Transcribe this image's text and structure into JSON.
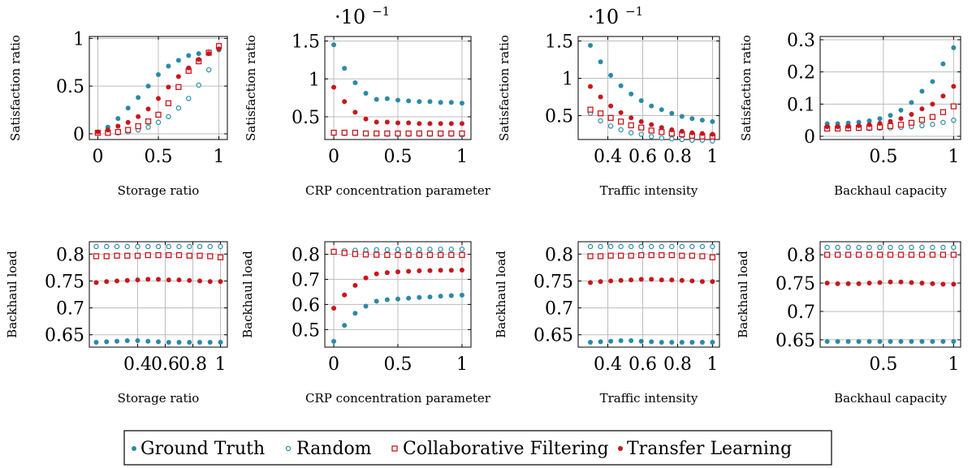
{
  "colors": {
    "teal": "#2a8ba6",
    "red": "#c8161d",
    "frame": "#000000",
    "grid": "#bdbdbd"
  },
  "legend": {
    "placement": "bottom-center",
    "items": [
      {
        "label": "Ground Truth",
        "marker": "filled-circle",
        "color": "#2a8ba6"
      },
      {
        "label": "Random",
        "marker": "open-circle",
        "color": "#2a8ba6"
      },
      {
        "label": "Collaborative Filtering",
        "marker": "open-square",
        "color": "#c8161d"
      },
      {
        "label": "Transfer Learning",
        "marker": "filled-circle",
        "color": "#c8161d"
      }
    ]
  },
  "chart_data": [
    {
      "type": "scatter",
      "grid": true,
      "xlabel": "Storage ratio",
      "ylabel": "Satisfaction ratio",
      "y_multiplier": "",
      "xlim": [
        -0.07,
        1.07
      ],
      "ylim": [
        -0.06,
        1.02
      ],
      "xticks": [
        0,
        0.5,
        1
      ],
      "xtick_labels": [
        "0",
        "0.5",
        "1"
      ],
      "yticks": [
        0,
        0.5,
        1
      ],
      "ytick_labels": [
        "0",
        "0.5",
        "1"
      ],
      "x": [
        0,
        0.0833,
        0.1667,
        0.25,
        0.3333,
        0.4167,
        0.5,
        0.5833,
        0.6667,
        0.75,
        0.8333,
        0.9167,
        1
      ],
      "series": [
        {
          "name": "Ground Truth",
          "values": [
            0.02,
            0.07,
            0.16,
            0.27,
            0.38,
            0.5,
            0.62,
            0.71,
            0.77,
            0.82,
            0.84,
            0.86,
            0.88
          ]
        },
        {
          "name": "Random",
          "values": [
            0.01,
            0.01,
            0.01,
            0.02,
            0.04,
            0.07,
            0.12,
            0.18,
            0.27,
            0.37,
            0.51,
            0.67,
            0.89
          ]
        },
        {
          "name": "Collaborative Filtering",
          "values": [
            0.01,
            0.01,
            0.02,
            0.04,
            0.08,
            0.13,
            0.2,
            0.32,
            0.49,
            0.66,
            0.76,
            0.85,
            0.92
          ]
        },
        {
          "name": "Transfer Learning",
          "values": [
            0.02,
            0.04,
            0.08,
            0.12,
            0.18,
            0.26,
            0.37,
            0.49,
            0.6,
            0.69,
            0.78,
            0.84,
            0.89
          ]
        }
      ]
    },
    {
      "type": "scatter",
      "grid": true,
      "xlabel": "CRP concentration parameter",
      "ylabel": "Satisfaction ratio",
      "y_multiplier": "·10",
      "y_multiplier_exp": "−1",
      "xlim": [
        -0.07,
        1.07
      ],
      "ylim": [
        0.2,
        1.56
      ],
      "xticks": [
        0,
        0.5,
        1
      ],
      "xtick_labels": [
        "0",
        "0.5",
        "1"
      ],
      "yticks": [
        0.5,
        1,
        1.5
      ],
      "ytick_labels": [
        "0.5",
        "1",
        "1.5"
      ],
      "x": [
        0,
        0.0833,
        0.1667,
        0.25,
        0.3333,
        0.4167,
        0.5,
        0.5833,
        0.6667,
        0.75,
        0.8333,
        0.9167,
        1
      ],
      "series": [
        {
          "name": "Ground Truth",
          "values": [
            1.45,
            1.14,
            0.95,
            0.81,
            0.73,
            0.74,
            0.72,
            0.71,
            0.7,
            0.7,
            0.69,
            0.69,
            0.68
          ]
        },
        {
          "name": "Random",
          "values": [
            0.28,
            0.28,
            0.28,
            0.28,
            0.28,
            0.27,
            0.27,
            0.27,
            0.27,
            0.27,
            0.27,
            0.27,
            0.26
          ]
        },
        {
          "name": "Collaborative Filtering",
          "values": [
            0.29,
            0.29,
            0.29,
            0.28,
            0.28,
            0.28,
            0.28,
            0.28,
            0.28,
            0.28,
            0.28,
            0.28,
            0.28
          ]
        },
        {
          "name": "Transfer Learning",
          "values": [
            0.89,
            0.7,
            0.56,
            0.47,
            0.43,
            0.43,
            0.42,
            0.42,
            0.41,
            0.41,
            0.41,
            0.41,
            0.41
          ]
        }
      ]
    },
    {
      "type": "scatter",
      "grid": true,
      "xlabel": "Traffic intensity",
      "ylabel": "Satisfaction ratio",
      "y_multiplier": "·10",
      "y_multiplier_exp": "−1",
      "xlim": [
        0.23,
        1.04
      ],
      "ylim": [
        0.18,
        1.56
      ],
      "xticks": [
        0.4,
        0.6,
        0.8,
        1
      ],
      "xtick_labels": [
        "0.4",
        "0.6",
        "0.8",
        "1"
      ],
      "yticks": [
        0.5,
        1,
        1.5
      ],
      "ytick_labels": [
        "0.5",
        "1",
        "1.5"
      ],
      "x": [
        0.3,
        0.3583,
        0.4167,
        0.475,
        0.5333,
        0.5917,
        0.65,
        0.7083,
        0.7667,
        0.825,
        0.8833,
        0.9417,
        1
      ],
      "series": [
        {
          "name": "Ground Truth",
          "values": [
            1.44,
            1.22,
            1.04,
            0.9,
            0.79,
            0.7,
            0.63,
            0.58,
            0.53,
            0.49,
            0.46,
            0.44,
            0.42
          ]
        },
        {
          "name": "Random",
          "values": [
            0.53,
            0.43,
            0.36,
            0.31,
            0.27,
            0.25,
            0.22,
            0.2,
            0.19,
            0.18,
            0.17,
            0.17,
            0.16
          ]
        },
        {
          "name": "Collaborative Filtering",
          "values": [
            0.58,
            0.53,
            0.47,
            0.42,
            0.37,
            0.34,
            0.3,
            0.28,
            0.26,
            0.25,
            0.23,
            0.22,
            0.22
          ]
        },
        {
          "name": "Transfer Learning",
          "values": [
            0.89,
            0.75,
            0.63,
            0.54,
            0.47,
            0.42,
            0.38,
            0.34,
            0.31,
            0.29,
            0.27,
            0.26,
            0.25
          ]
        }
      ]
    },
    {
      "type": "scatter",
      "grid": true,
      "xlabel": "Backhaul capacity",
      "ylabel": "Satisfaction ratio",
      "y_multiplier": "",
      "xlim": [
        0.05,
        1.05
      ],
      "ylim": [
        -0.01,
        0.31
      ],
      "xticks": [
        0.5,
        1
      ],
      "xtick_labels": [
        "0.5",
        "1"
      ],
      "yticks": [
        0,
        0.1,
        0.2,
        0.3
      ],
      "ytick_labels": [
        "0",
        "0.1",
        "0.2",
        "0.3"
      ],
      "x": [
        0.1,
        0.175,
        0.25,
        0.325,
        0.4,
        0.475,
        0.55,
        0.625,
        0.7,
        0.775,
        0.85,
        0.925,
        1
      ],
      "series": [
        {
          "name": "Ground Truth",
          "values": [
            0.039,
            0.039,
            0.041,
            0.044,
            0.048,
            0.055,
            0.065,
            0.081,
            0.105,
            0.14,
            0.17,
            0.225,
            0.275
          ]
        },
        {
          "name": "Random",
          "values": [
            0.023,
            0.023,
            0.023,
            0.024,
            0.024,
            0.025,
            0.026,
            0.028,
            0.03,
            0.033,
            0.037,
            0.043,
            0.05
          ]
        },
        {
          "name": "Collaborative Filtering",
          "values": [
            0.024,
            0.024,
            0.025,
            0.026,
            0.027,
            0.029,
            0.032,
            0.036,
            0.042,
            0.051,
            0.06,
            0.075,
            0.093
          ]
        },
        {
          "name": "Transfer Learning",
          "values": [
            0.03,
            0.03,
            0.031,
            0.033,
            0.036,
            0.04,
            0.046,
            0.055,
            0.068,
            0.085,
            0.1,
            0.125,
            0.155
          ]
        }
      ]
    },
    {
      "type": "scatter",
      "grid": true,
      "xlabel": "Storage ratio",
      "ylabel": "Backhaul load",
      "y_multiplier": "",
      "xlim": [
        0.05,
        1.05
      ],
      "ylim": [
        0.627,
        0.823
      ],
      "xticks": [
        0.4,
        0.6,
        0.8,
        1
      ],
      "xtick_labels": [
        "0.4",
        "0.6",
        "0.8",
        "1"
      ],
      "yticks": [
        0.65,
        0.7,
        0.75,
        0.8
      ],
      "ytick_labels": [
        "0.65",
        "0.7",
        "0.75",
        "0.8"
      ],
      "x": [
        0.1,
        0.175,
        0.25,
        0.325,
        0.4,
        0.475,
        0.55,
        0.625,
        0.7,
        0.775,
        0.85,
        0.925,
        1
      ],
      "series": [
        {
          "name": "Ground Truth",
          "values": [
            0.636,
            0.637,
            0.638,
            0.639,
            0.639,
            0.638,
            0.637,
            0.636,
            0.636,
            0.636,
            0.636,
            0.636,
            0.636
          ]
        },
        {
          "name": "Random",
          "values": [
            0.814,
            0.814,
            0.814,
            0.814,
            0.814,
            0.814,
            0.814,
            0.814,
            0.814,
            0.814,
            0.814,
            0.814,
            0.814
          ]
        },
        {
          "name": "Collaborative Filtering",
          "values": [
            0.796,
            0.796,
            0.797,
            0.797,
            0.797,
            0.798,
            0.798,
            0.798,
            0.798,
            0.797,
            0.797,
            0.796,
            0.794
          ]
        },
        {
          "name": "Transfer Learning",
          "values": [
            0.747,
            0.749,
            0.75,
            0.751,
            0.752,
            0.753,
            0.753,
            0.752,
            0.752,
            0.751,
            0.75,
            0.749,
            0.749
          ]
        }
      ]
    },
    {
      "type": "scatter",
      "grid": true,
      "xlabel": "CRP concentration parameter",
      "ylabel": "Backhaul load",
      "y_multiplier": "",
      "xlim": [
        -0.07,
        1.07
      ],
      "ylim": [
        0.43,
        0.85
      ],
      "xticks": [
        0,
        0.5,
        1
      ],
      "xtick_labels": [
        "0",
        "0.5",
        "1"
      ],
      "yticks": [
        0.5,
        0.6,
        0.7,
        0.8
      ],
      "ytick_labels": [
        "0.5",
        "0.6",
        "0.7",
        "0.8"
      ],
      "x": [
        0,
        0.0833,
        0.1667,
        0.25,
        0.3333,
        0.4167,
        0.5,
        0.5833,
        0.6667,
        0.75,
        0.8333,
        0.9167,
        1
      ],
      "series": [
        {
          "name": "Ground Truth",
          "values": [
            0.453,
            0.517,
            0.565,
            0.593,
            0.613,
            0.619,
            0.622,
            0.625,
            0.628,
            0.63,
            0.633,
            0.635,
            0.637
          ]
        },
        {
          "name": "Random",
          "values": [
            0.81,
            0.814,
            0.816,
            0.817,
            0.818,
            0.818,
            0.819,
            0.819,
            0.819,
            0.82,
            0.82,
            0.82,
            0.82
          ]
        },
        {
          "name": "Collaborative Filtering",
          "values": [
            0.81,
            0.805,
            0.801,
            0.799,
            0.798,
            0.797,
            0.797,
            0.797,
            0.797,
            0.797,
            0.797,
            0.797,
            0.797
          ]
        },
        {
          "name": "Transfer Learning",
          "values": [
            0.585,
            0.638,
            0.676,
            0.706,
            0.722,
            0.727,
            0.73,
            0.732,
            0.734,
            0.735,
            0.736,
            0.736,
            0.737
          ]
        }
      ]
    },
    {
      "type": "scatter",
      "grid": true,
      "xlabel": "Traffic intensity",
      "ylabel": "Backhaul load",
      "y_multiplier": "",
      "xlim": [
        0.23,
        1.04
      ],
      "ylim": [
        0.627,
        0.823
      ],
      "xticks": [
        0.4,
        0.6,
        0.8,
        1
      ],
      "xtick_labels": [
        "0.4",
        "0.6",
        "0.8",
        "1"
      ],
      "yticks": [
        0.65,
        0.7,
        0.75,
        0.8
      ],
      "ytick_labels": [
        "0.65",
        "0.7",
        "0.75",
        "0.8"
      ],
      "x": [
        0.3,
        0.3583,
        0.4167,
        0.475,
        0.5333,
        0.5917,
        0.65,
        0.7083,
        0.7667,
        0.825,
        0.8833,
        0.9417,
        1
      ],
      "series": [
        {
          "name": "Ground Truth",
          "values": [
            0.636,
            0.637,
            0.638,
            0.639,
            0.639,
            0.638,
            0.637,
            0.636,
            0.636,
            0.636,
            0.636,
            0.636,
            0.636
          ]
        },
        {
          "name": "Random",
          "values": [
            0.814,
            0.814,
            0.814,
            0.814,
            0.814,
            0.814,
            0.814,
            0.814,
            0.814,
            0.814,
            0.814,
            0.814,
            0.814
          ]
        },
        {
          "name": "Collaborative Filtering",
          "values": [
            0.796,
            0.796,
            0.797,
            0.797,
            0.797,
            0.798,
            0.798,
            0.798,
            0.798,
            0.797,
            0.797,
            0.796,
            0.794
          ]
        },
        {
          "name": "Transfer Learning",
          "values": [
            0.747,
            0.749,
            0.75,
            0.751,
            0.752,
            0.753,
            0.753,
            0.752,
            0.752,
            0.751,
            0.75,
            0.749,
            0.749
          ]
        }
      ]
    },
    {
      "type": "scatter",
      "grid": true,
      "xlabel": "Backhaul capacity",
      "ylabel": "Backhaul load",
      "y_multiplier": "",
      "xlim": [
        0.05,
        1.05
      ],
      "ylim": [
        0.637,
        0.823
      ],
      "xticks": [
        0.5,
        1
      ],
      "xtick_labels": [
        "0.5",
        "1"
      ],
      "yticks": [
        0.65,
        0.7,
        0.75,
        0.8
      ],
      "ytick_labels": [
        "0.65",
        "0.7",
        "0.75",
        "0.8"
      ],
      "x": [
        0.1,
        0.175,
        0.25,
        0.325,
        0.4,
        0.475,
        0.55,
        0.625,
        0.7,
        0.775,
        0.85,
        0.925,
        1
      ],
      "series": [
        {
          "name": "Ground Truth",
          "values": [
            0.647,
            0.647,
            0.647,
            0.647,
            0.647,
            0.647,
            0.647,
            0.647,
            0.647,
            0.647,
            0.647,
            0.647,
            0.647
          ]
        },
        {
          "name": "Random",
          "values": [
            0.813,
            0.813,
            0.813,
            0.813,
            0.813,
            0.813,
            0.813,
            0.813,
            0.813,
            0.813,
            0.813,
            0.813,
            0.813
          ]
        },
        {
          "name": "Collaborative Filtering",
          "values": [
            0.8,
            0.8,
            0.8,
            0.8,
            0.8,
            0.8,
            0.8,
            0.8,
            0.8,
            0.8,
            0.8,
            0.8,
            0.8
          ]
        },
        {
          "name": "Transfer Learning",
          "values": [
            0.75,
            0.749,
            0.749,
            0.749,
            0.75,
            0.751,
            0.752,
            0.752,
            0.751,
            0.75,
            0.749,
            0.748,
            0.748
          ]
        }
      ]
    }
  ]
}
